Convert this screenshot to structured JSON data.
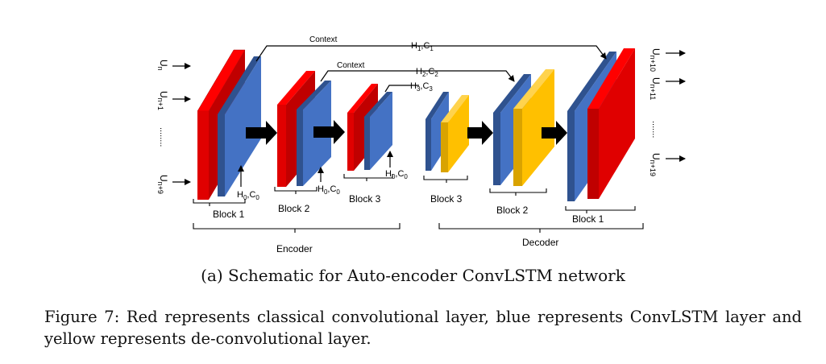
{
  "colors": {
    "conv": "#ff0000",
    "convlstm": "#4472c4",
    "deconv": "#ffc000",
    "arrow": "#000000"
  },
  "inputs": {
    "top": "U",
    "top_sub": "n",
    "mid": "U",
    "mid_sub": "n+1",
    "dots": "........",
    "bottom": "U",
    "bottom_sub": "n+9"
  },
  "outputs": {
    "top": "U",
    "top_sub": "n+10",
    "mid": "U",
    "mid_sub": "n+11",
    "dots": ".......",
    "bottom": "U",
    "bottom_sub": "n+19"
  },
  "context": {
    "label1": "Context",
    "label2": "Context",
    "h1": "H",
    "h1_sub": "1",
    "c1": "C",
    "c1_sub": "1",
    "h2": "H",
    "h2_sub": "2",
    "c2": "C",
    "c2_sub": "2",
    "h3": "H",
    "h3_sub": "3",
    "c3": "C",
    "c3_sub": "3"
  },
  "init_state": {
    "h": "H",
    "h_sub": "0",
    "c": "C",
    "c_sub": "0"
  },
  "blocks": {
    "enc1": "Block 1",
    "enc2": "Block 2",
    "enc3": "Block 3",
    "dec3": "Block 3",
    "dec2": "Block 2",
    "dec1": "Block 1"
  },
  "groups": {
    "encoder": "Encoder",
    "decoder": "Decoder"
  },
  "captions": {
    "sub": "(a) Schematic for Auto-encoder ConvLSTM network",
    "main": "Figure 7: Red represents classical convolutional layer, blue represents ConvLSTM layer and yellow represents de-convolutional layer."
  }
}
